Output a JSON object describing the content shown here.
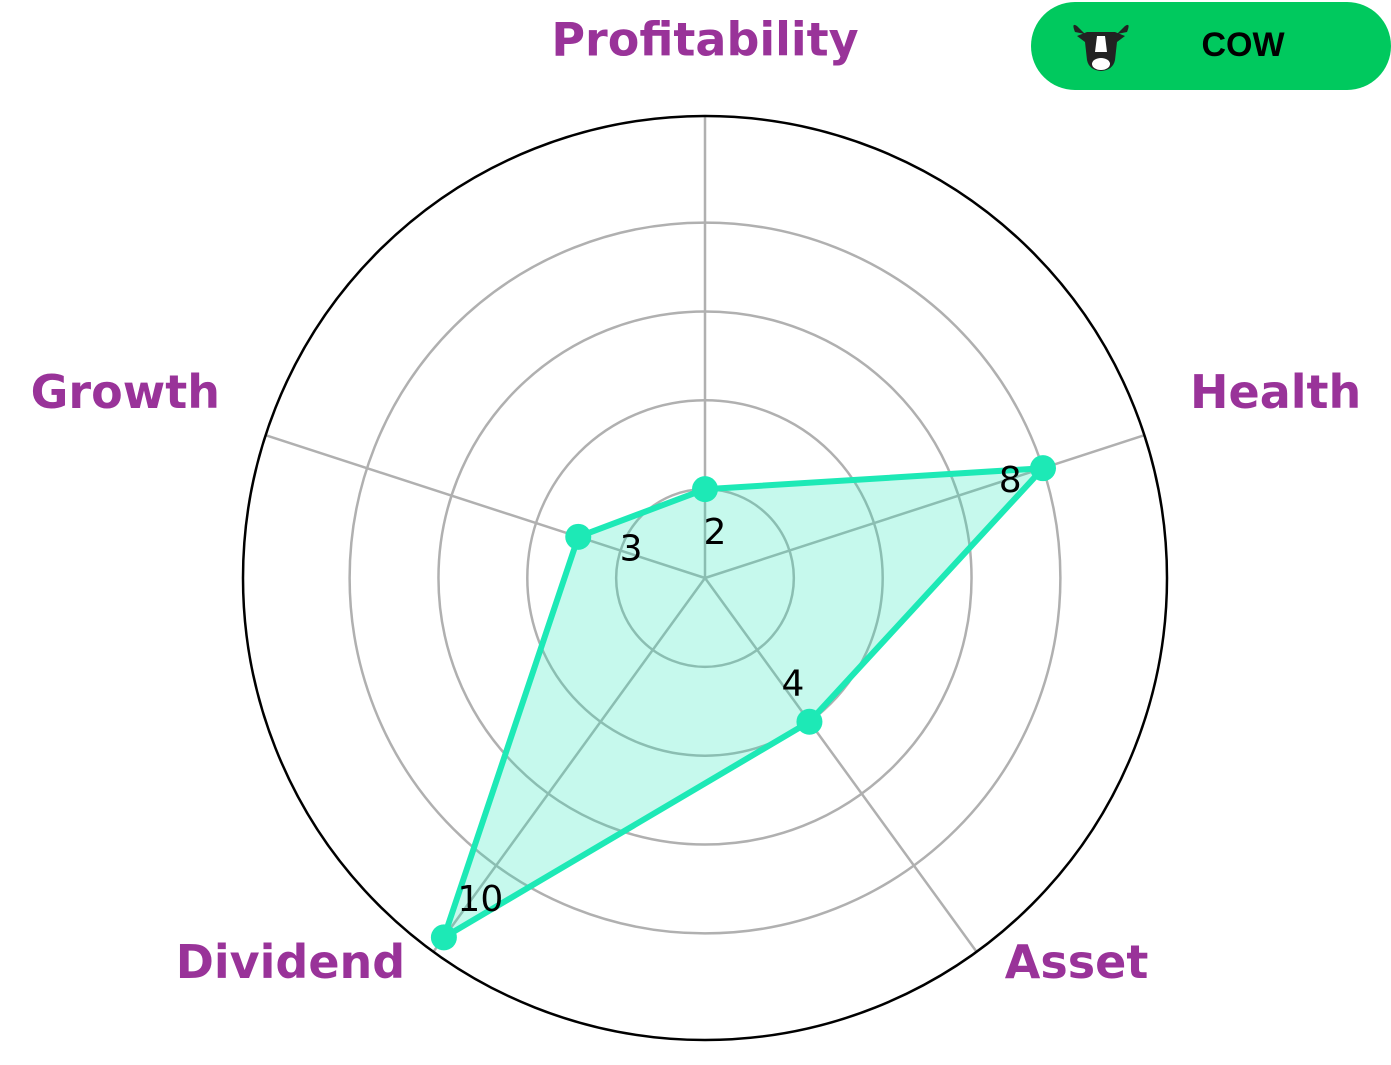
{
  "chart_data": {
    "type": "radar",
    "categories": [
      "Profitability",
      "Health",
      "Asset",
      "Dividend",
      "Growth"
    ],
    "values": [
      2,
      8,
      4,
      10,
      3
    ],
    "color": "#1de9b6",
    "rlim": [
      0,
      10.4
    ],
    "rticks": [
      2,
      4,
      6,
      8
    ],
    "grid": true
  },
  "badge": {
    "ticker": "COW"
  }
}
